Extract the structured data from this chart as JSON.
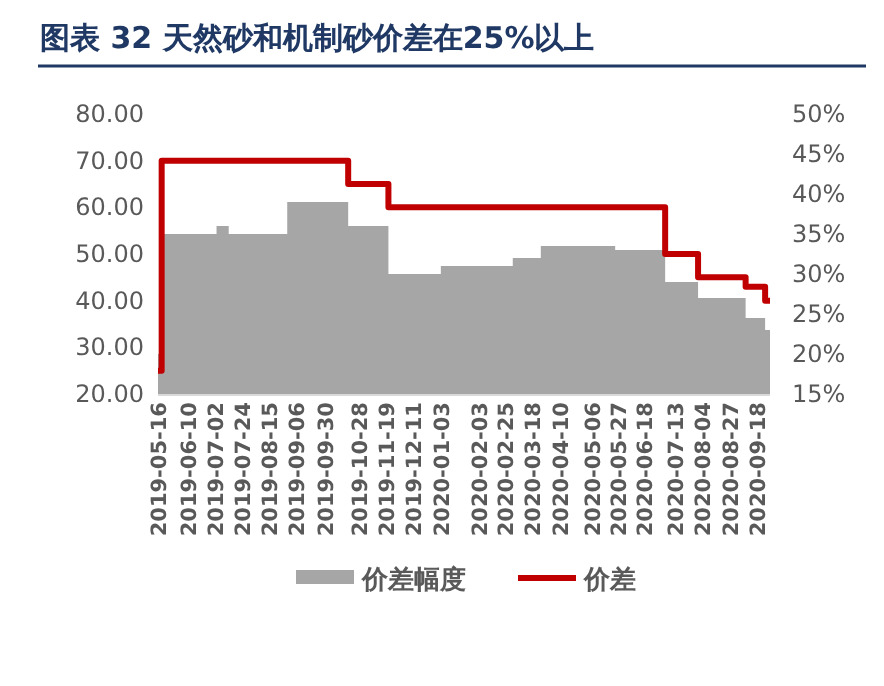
{
  "chart_data": {
    "type": "step",
    "title": "图表 32 天然砂和机制砂价差在25%以上",
    "xlim": [
      "2019-05-16",
      "2020-09-29"
    ],
    "xticks": [
      "2019-05-16",
      "2019-06-10",
      "2019-07-02",
      "2019-07-24",
      "2019-08-15",
      "2019-09-06",
      "2019-09-30",
      "2019-10-28",
      "2019-11-19",
      "2019-12-11",
      "2020-01-03",
      "2020-02-03",
      "2020-02-25",
      "2020-03-18",
      "2020-04-10",
      "2020-05-06",
      "2020-05-27",
      "2020-06-18",
      "2020-07-13",
      "2020-08-04",
      "2020-08-27",
      "2020-09-18"
    ],
    "ylim": [
      20,
      80
    ],
    "yticks": [
      {
        "value": 20,
        "label": "20.00"
      },
      {
        "value": 30,
        "label": "30.00"
      },
      {
        "value": 40,
        "label": "40.00"
      },
      {
        "value": 50,
        "label": "50.00"
      },
      {
        "value": 60,
        "label": "60.00"
      },
      {
        "value": 70,
        "label": "70.00"
      },
      {
        "value": 80,
        "label": "80.00"
      }
    ],
    "y2lim": [
      15,
      50
    ],
    "y2ticks": [
      {
        "value": 15,
        "label": "15%"
      },
      {
        "value": 20,
        "label": "20%"
      },
      {
        "value": 25,
        "label": "25%"
      },
      {
        "value": 30,
        "label": "30%"
      },
      {
        "value": 35,
        "label": "35%"
      },
      {
        "value": 40,
        "label": "40%"
      },
      {
        "value": 45,
        "label": "45%"
      },
      {
        "value": 50,
        "label": "50%"
      }
    ],
    "series": [
      {
        "name": "价差幅度",
        "type": "area",
        "axis": "y2",
        "color": "#a6a6a6",
        "x": [
          "2019-05-16",
          "2019-05-19",
          "2019-07-03",
          "2019-07-13",
          "2019-08-30",
          "2019-10-19",
          "2019-11-21",
          "2020-01-03",
          "2020-03-02",
          "2020-03-25",
          "2020-05-25",
          "2020-07-05",
          "2020-08-01",
          "2020-09-09",
          "2020-09-25",
          "2020-09-29"
        ],
        "values": [
          20,
          35,
          36,
          35,
          39,
          36,
          30,
          31,
          32,
          33.5,
          33,
          29,
          27,
          24.5,
          23,
          23
        ]
      },
      {
        "name": "价差",
        "axis": "y",
        "color": "#c00000",
        "x": [
          "2019-05-16",
          "2019-05-19",
          "2019-10-19",
          "2019-11-21",
          "2020-07-05",
          "2020-08-01",
          "2020-09-09",
          "2020-09-25",
          "2020-09-29"
        ],
        "values": [
          25,
          70,
          65,
          60,
          50,
          45,
          43,
          40,
          40
        ]
      }
    ],
    "grid": false,
    "legend": "bottom"
  }
}
